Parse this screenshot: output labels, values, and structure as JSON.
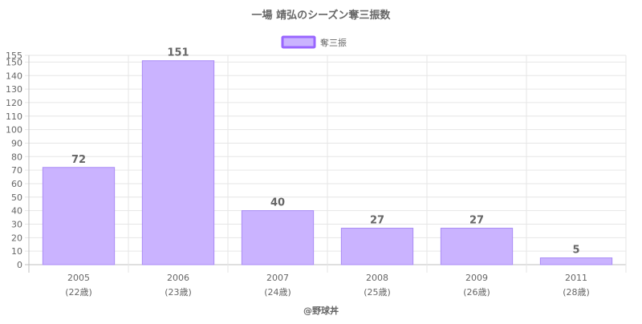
{
  "chart_data": {
    "type": "bar",
    "title": "一場 靖弘のシーズン奪三振数",
    "categories": [
      "2005",
      "2006",
      "2007",
      "2008",
      "2009",
      "2011"
    ],
    "category_sublabels": [
      "(22歳)",
      "(23歳)",
      "(24歳)",
      "(25歳)",
      "(26歳)",
      "(28歳)"
    ],
    "series": [
      {
        "name": "奪三振",
        "values": [
          72,
          151,
          40,
          27,
          27,
          5
        ]
      }
    ],
    "ylim": [
      0,
      155
    ],
    "yticks": [
      0,
      10,
      20,
      30,
      40,
      50,
      60,
      70,
      80,
      90,
      100,
      110,
      120,
      130,
      140,
      150,
      155
    ],
    "grid": true,
    "legend_position": "top",
    "data_labels": true,
    "credit": "@野球丼",
    "colors": {
      "bar_fill": "#cab3ff",
      "bar_stroke": "#a98bf5",
      "legend_stroke": "#9966ff",
      "grid": "#e6e6e6",
      "text": "#666666"
    }
  }
}
